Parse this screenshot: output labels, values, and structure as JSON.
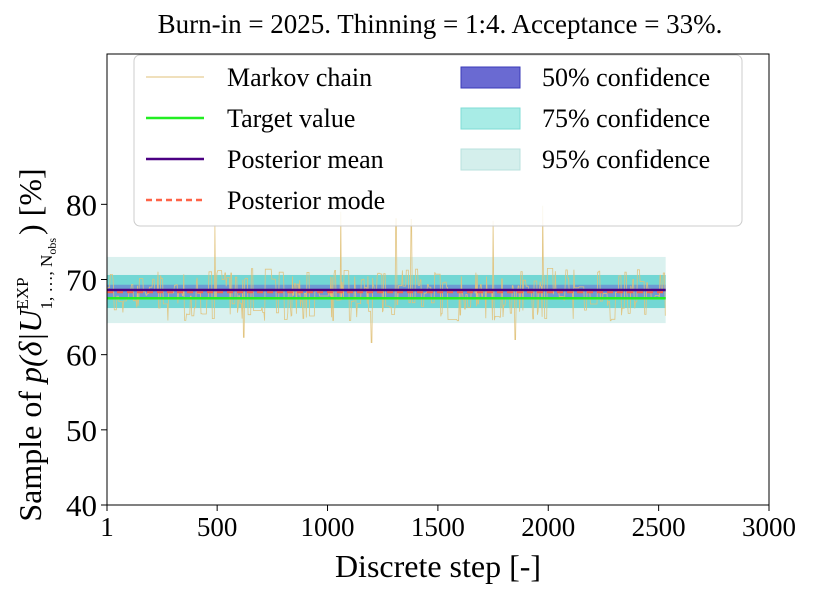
{
  "chart_data": {
    "type": "line",
    "title": "Burn-in = 2025. Thinning = 1:4. Acceptance = 33%.",
    "xlabel": "Discrete step [-]",
    "ylabel_prefix": "Sample of ",
    "ylabel_math": "p(δ|U",
    "ylabel_sup": "EXP",
    "ylabel_sub": "1, …, N",
    "ylabel_sub2": "obs",
    "ylabel_suffix": ") [%]",
    "xlim": [
      1,
      3000
    ],
    "ylim": [
      40,
      100
    ],
    "x_ticks": [
      {
        "value": 1,
        "label": "1"
      },
      {
        "value": 500,
        "label": "500"
      },
      {
        "value": 1000,
        "label": "1000"
      },
      {
        "value": 1500,
        "label": "1500"
      },
      {
        "value": 2000,
        "label": "2000"
      },
      {
        "value": 2500,
        "label": "2500"
      },
      {
        "value": 3000,
        "label": "3000"
      }
    ],
    "y_ticks": [
      {
        "value": 40,
        "label": "40"
      },
      {
        "value": 50,
        "label": "50"
      },
      {
        "value": 60,
        "label": "60"
      },
      {
        "value": 70,
        "label": "70"
      },
      {
        "value": 80,
        "label": "80"
      }
    ],
    "chain": {
      "name": "Markov chain",
      "color": "#e0c27a",
      "n_steps": 2532,
      "center": 68.0,
      "typical_low": 64.5,
      "typical_high": 71.5,
      "spikes": [
        {
          "x": 490,
          "y": 77.3
        },
        {
          "x": 1060,
          "y": 79.0
        },
        {
          "x": 1310,
          "y": 78.1
        },
        {
          "x": 1380,
          "y": 78.0
        },
        {
          "x": 1750,
          "y": 77.8
        },
        {
          "x": 1975,
          "y": 79.8
        },
        {
          "x": 1200,
          "y": 61.6
        },
        {
          "x": 620,
          "y": 62.3
        },
        {
          "x": 1850,
          "y": 62.0
        }
      ]
    },
    "bands": [
      {
        "name": "95% confidence",
        "low": 64.2,
        "high": 73.0,
        "color": "#d4efec"
      },
      {
        "name": "75% confidence",
        "low": 66.2,
        "high": 70.6,
        "color": "#5fd2cf"
      },
      {
        "name": "50% confidence",
        "low": 67.4,
        "high": 69.3,
        "color": "#6a6ad2"
      }
    ],
    "target_value": {
      "name": "Target value",
      "y": 67.5,
      "color": "#22ee22"
    },
    "posterior_mean": {
      "name": "Posterior mean",
      "y": 68.6,
      "color": "#4b0082"
    },
    "posterior_mode": {
      "name": "Posterior mode",
      "y": 68.3,
      "color": "#ff6347"
    },
    "legend": {
      "placement": "top",
      "left_column": [
        {
          "key": "chain",
          "label": "Markov chain",
          "style": "thinline",
          "color": "#e0c27a"
        },
        {
          "key": "target",
          "label": "Target value",
          "style": "line",
          "color": "#22ee22"
        },
        {
          "key": "mean",
          "label": "Posterior mean",
          "style": "line",
          "color": "#4b0082"
        },
        {
          "key": "mode",
          "label": "Posterior mode",
          "style": "dashed",
          "color": "#ff6347"
        }
      ],
      "right_column": [
        {
          "key": "b50",
          "label": "50% confidence",
          "style": "patch",
          "color": "#6a6ad2",
          "edge": "#3a3ab8"
        },
        {
          "key": "b75",
          "label": "75% confidence",
          "style": "patch",
          "color": "#a8ece6",
          "edge": "#7fdcd6"
        },
        {
          "key": "b95",
          "label": "95% confidence",
          "style": "patch",
          "color": "#d4efec",
          "edge": "#b8e2de"
        }
      ]
    }
  }
}
